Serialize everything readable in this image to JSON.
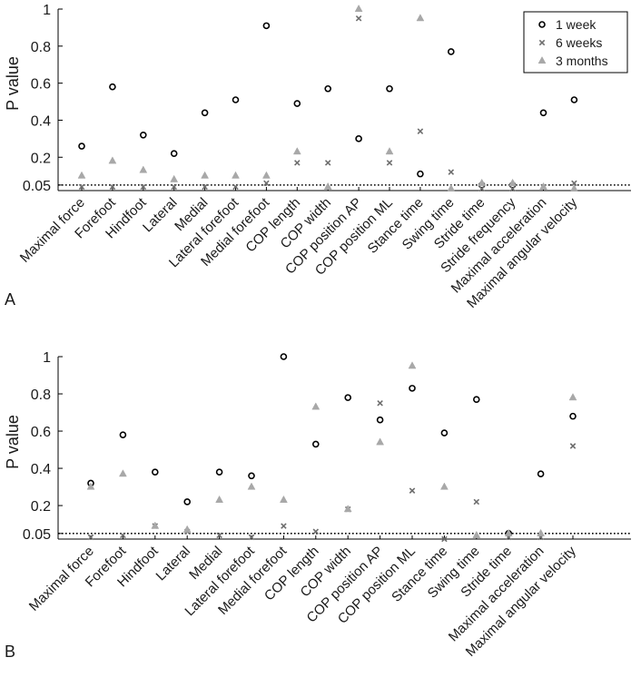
{
  "figure": {
    "panel_labels": [
      "A",
      "B"
    ]
  },
  "colors": {
    "one_week": "#000000",
    "six_weeks": "#6e6e6e",
    "three_months": "#a8a8a8",
    "axis": "#000000"
  },
  "chart_data": [
    {
      "panel": "A",
      "type": "scatter",
      "ylabel": "P value",
      "ylim": [
        0.02,
        1.0
      ],
      "yticks": [
        0.05,
        0.2,
        0.4,
        0.6,
        0.8,
        1
      ],
      "ytick_labels": [
        "0.05",
        "0.2",
        "0.4",
        "0.6",
        "0.8",
        "1"
      ],
      "reference_line": {
        "y": 0.05,
        "style": "dotted"
      },
      "legend": {
        "position": "top-right",
        "entries": [
          "1 week",
          "6 weeks",
          "3 months"
        ]
      },
      "categories": [
        "Maximal force",
        "Forefoot",
        "Hindfoot",
        "Lateral",
        "Medial",
        "Lateral forefoot",
        "Medial forefoot",
        "COP length",
        "COP width",
        "COP position AP",
        "COP position ML",
        "Stance time",
        "Swing time",
        "Stride time",
        "Stride frequency",
        "Maximal acceleration",
        "Maximal angular velocity"
      ],
      "series": [
        {
          "name": "1 week",
          "marker": "circle",
          "values": [
            0.26,
            0.58,
            0.32,
            0.22,
            0.44,
            0.51,
            0.91,
            0.49,
            0.57,
            0.3,
            0.57,
            0.11,
            0.77,
            0.05,
            0.05,
            0.44,
            0.51
          ]
        },
        {
          "name": "6 weeks",
          "marker": "x",
          "values": [
            0.04,
            0.04,
            0.04,
            0.04,
            0.04,
            0.04,
            0.06,
            0.17,
            0.17,
            0.95,
            0.17,
            0.34,
            0.12,
            0.03,
            0.03,
            0.04,
            0.06
          ]
        },
        {
          "name": "3 months",
          "marker": "triangle",
          "values": [
            0.1,
            0.18,
            0.13,
            0.08,
            0.1,
            0.1,
            0.1,
            0.23,
            0.04,
            1.0,
            0.23,
            0.95,
            0.03,
            0.06,
            0.06,
            0.04,
            0.03
          ]
        }
      ]
    },
    {
      "panel": "B",
      "type": "scatter",
      "ylabel": "P value",
      "ylim": [
        0.02,
        1.0
      ],
      "yticks": [
        0.05,
        0.2,
        0.4,
        0.6,
        0.8,
        1
      ],
      "ytick_labels": [
        "0.05",
        "0.2",
        "0.4",
        "0.6",
        "0.8",
        "1"
      ],
      "reference_line": {
        "y": 0.05,
        "style": "dotted"
      },
      "categories": [
        "Maximal force",
        "Forefoot",
        "Hindfoot",
        "Lateral",
        "Medial",
        "Lateral forefoot",
        "Medial forefoot",
        "COP length",
        "COP width",
        "COP position AP",
        "COP position ML",
        "Stance time",
        "Swing time",
        "Stride time",
        "Maximal acceleration",
        "Maximal angular velocity"
      ],
      "series": [
        {
          "name": "1 week",
          "marker": "circle",
          "values": [
            0.32,
            0.58,
            0.38,
            0.22,
            0.38,
            0.36,
            1.0,
            0.53,
            0.78,
            0.66,
            0.83,
            0.59,
            0.77,
            0.05,
            0.37,
            0.68
          ]
        },
        {
          "name": "6 weeks",
          "marker": "x",
          "values": [
            0.03,
            0.04,
            0.09,
            0.06,
            0.04,
            0.03,
            0.09,
            0.06,
            0.18,
            0.75,
            0.28,
            0.02,
            0.22,
            0.03,
            0.03,
            0.52
          ]
        },
        {
          "name": "3 months",
          "marker": "triangle",
          "values": [
            0.3,
            0.37,
            0.09,
            0.07,
            0.23,
            0.3,
            0.23,
            0.73,
            0.18,
            0.54,
            0.95,
            0.3,
            0.04,
            0.05,
            0.05,
            0.78
          ]
        }
      ]
    }
  ]
}
